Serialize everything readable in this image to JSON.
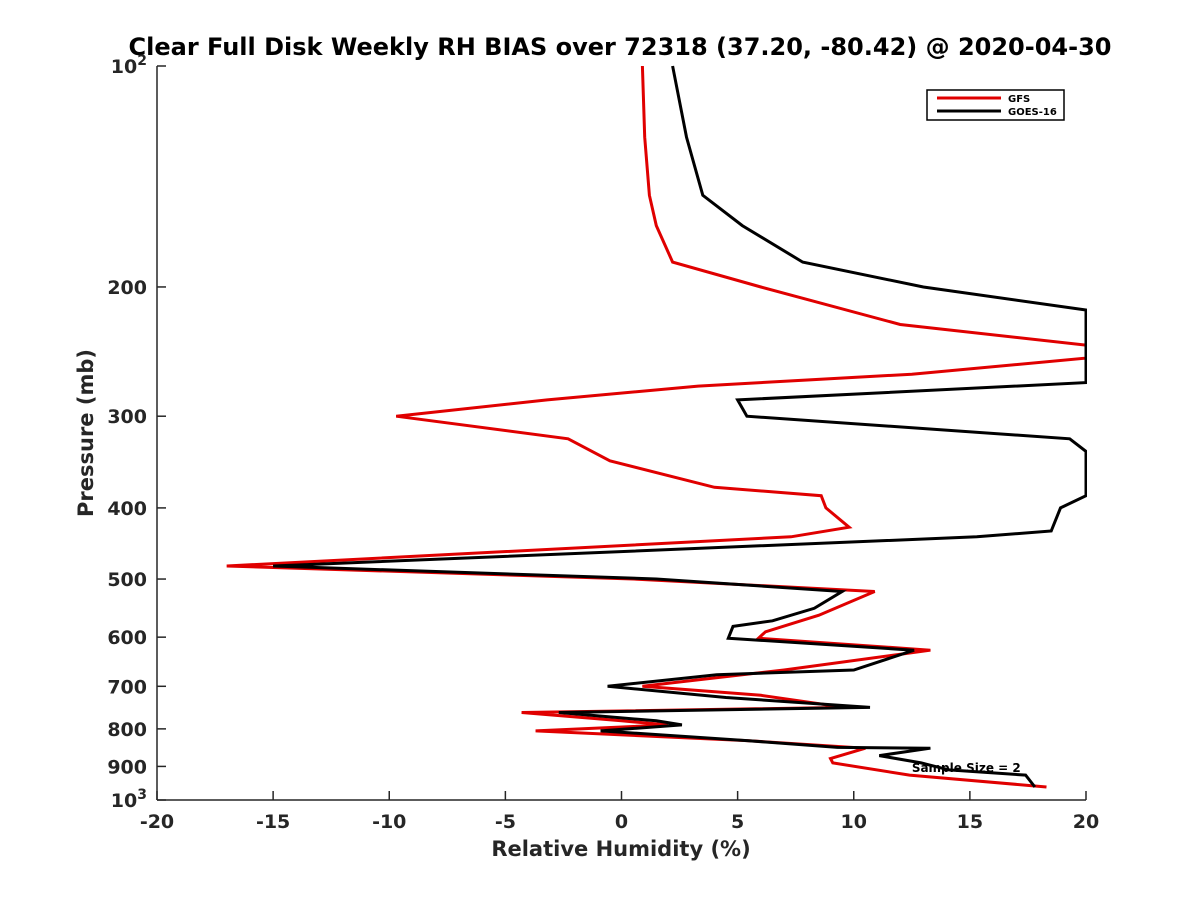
{
  "chart_data": {
    "type": "line",
    "title": "Clear Full Disk Weekly RH BIAS over 72318 (37.20, -80.42) @ 2020-04-30",
    "xlabel": "Relative Humidity (%)",
    "ylabel": "Pressure (mb)",
    "xlim": [
      -20,
      20
    ],
    "ylim": [
      100,
      1000
    ],
    "y_scale": "log",
    "y_reversed": true,
    "grid": false,
    "legend_position": "top-right",
    "x_ticks": [
      "-20",
      "-15",
      "-10",
      "-5",
      "0",
      "5",
      "10",
      "15",
      "20"
    ],
    "y_ticks": [
      {
        "value": 200,
        "label": "200"
      },
      {
        "value": 300,
        "label": "300"
      },
      {
        "value": 400,
        "label": "400"
      },
      {
        "value": 500,
        "label": "500"
      },
      {
        "value": 600,
        "label": "600"
      },
      {
        "value": 700,
        "label": "700"
      },
      {
        "value": 800,
        "label": "800"
      },
      {
        "value": 900,
        "label": "900"
      }
    ],
    "y_ticks_top": {
      "base": "10",
      "exp": "2"
    },
    "y_ticks_bottom": {
      "base": "10",
      "exp": "3"
    },
    "series": [
      {
        "name": "GFS",
        "color": "#e00000",
        "points": [
          [
            0.9,
            100
          ],
          [
            1.0,
            125
          ],
          [
            1.2,
            150
          ],
          [
            1.5,
            165
          ],
          [
            2.2,
            185
          ],
          [
            6.0,
            200
          ],
          [
            12.0,
            225
          ],
          [
            20.0,
            240
          ],
          [
            20.0,
            250
          ],
          [
            12.5,
            263
          ],
          [
            3.3,
            273
          ],
          [
            -3.2,
            285
          ],
          [
            -9.7,
            300
          ],
          [
            -2.3,
            322
          ],
          [
            -0.5,
            345
          ],
          [
            4.0,
            375
          ],
          [
            8.6,
            385
          ],
          [
            8.8,
            400
          ],
          [
            9.8,
            425
          ],
          [
            7.3,
            438
          ],
          [
            -17.0,
            480
          ],
          [
            0.5,
            500
          ],
          [
            10.9,
            520
          ],
          [
            8.5,
            560
          ],
          [
            6.2,
            590
          ],
          [
            5.9,
            602
          ],
          [
            13.3,
            625
          ],
          [
            7.0,
            665
          ],
          [
            0.9,
            700
          ],
          [
            6.0,
            720
          ],
          [
            9.6,
            748
          ],
          [
            -4.3,
            760
          ],
          [
            0.0,
            780
          ],
          [
            2.0,
            790
          ],
          [
            -3.7,
            805
          ],
          [
            5.4,
            830
          ],
          [
            10.5,
            850
          ],
          [
            9.0,
            878
          ],
          [
            9.1,
            890
          ],
          [
            12.4,
            925
          ],
          [
            18.3,
            960
          ]
        ]
      },
      {
        "name": "GOES-16",
        "color": "#000000",
        "points": [
          [
            2.2,
            100
          ],
          [
            2.8,
            125
          ],
          [
            3.5,
            150
          ],
          [
            5.2,
            165
          ],
          [
            7.8,
            185
          ],
          [
            13.0,
            200
          ],
          [
            20.0,
            215
          ],
          [
            20.0,
            270
          ],
          [
            5.0,
            285
          ],
          [
            5.4,
            300
          ],
          [
            19.3,
            322
          ],
          [
            20.0,
            335
          ],
          [
            20.0,
            385
          ],
          [
            18.9,
            400
          ],
          [
            18.5,
            430
          ],
          [
            15.3,
            438
          ],
          [
            -15.0,
            480
          ],
          [
            1.5,
            500
          ],
          [
            9.5,
            520
          ],
          [
            8.3,
            548
          ],
          [
            6.5,
            570
          ],
          [
            4.8,
            580
          ],
          [
            4.6,
            602
          ],
          [
            12.6,
            625
          ],
          [
            10.0,
            665
          ],
          [
            4.1,
            675
          ],
          [
            -0.6,
            700
          ],
          [
            4.5,
            725
          ],
          [
            10.7,
            748
          ],
          [
            -2.7,
            760
          ],
          [
            1.5,
            780
          ],
          [
            2.6,
            790
          ],
          [
            -0.9,
            805
          ],
          [
            5.4,
            830
          ],
          [
            9.3,
            848
          ],
          [
            13.3,
            850
          ],
          [
            11.1,
            870
          ],
          [
            12.9,
            890
          ],
          [
            14.1,
            910
          ],
          [
            17.4,
            925
          ],
          [
            17.8,
            960
          ]
        ]
      }
    ],
    "annotation": {
      "text": "Sample Size = 2",
      "x": 12.5,
      "y": 905
    }
  }
}
